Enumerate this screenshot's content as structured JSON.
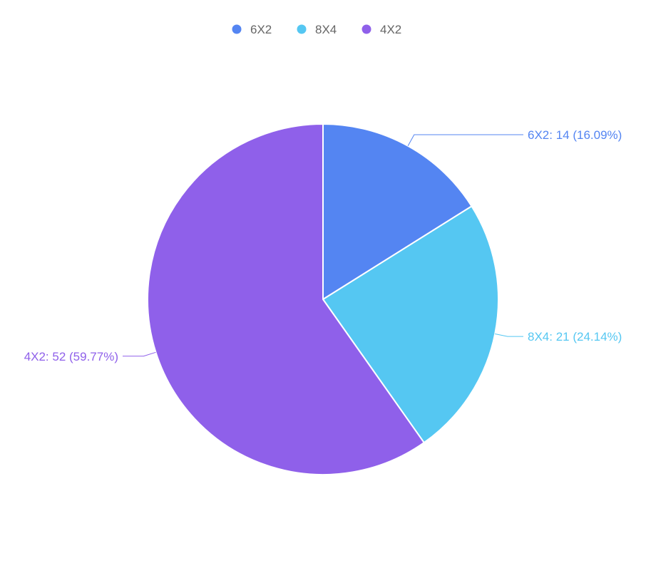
{
  "chart_data": {
    "type": "pie",
    "title": "",
    "categories": [
      "6X2",
      "8X4",
      "4X2"
    ],
    "values": [
      14,
      21,
      52
    ],
    "percentages": [
      "16.09%",
      "24.14%",
      "59.77%"
    ],
    "colors": [
      "#5485F2",
      "#55C7F2",
      "#8F60EA"
    ],
    "legend": {
      "position": "top-center",
      "items": [
        "6X2",
        "8X4",
        "4X2"
      ]
    },
    "labels": [
      "6X2: 14 (16.09%)",
      "8X4: 21 (24.14%)",
      "4X2: 52 (59.77%)"
    ]
  }
}
